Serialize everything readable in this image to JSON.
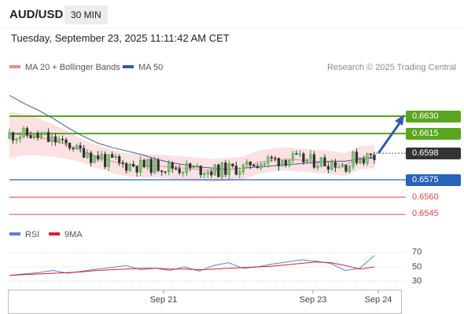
{
  "header": {
    "symbol": "AUD/USD",
    "timeframe": "30 MIN"
  },
  "datetime": "Tuesday, September 23, 2025 11:11:42 AM CET",
  "legend": {
    "ma20": "MA 20 + Bollinger Bands",
    "ma50": "MA 50",
    "credit": "Research © 2025 Trading Central",
    "rsi": "RSI",
    "rsi_ma": "9MA"
  },
  "colors": {
    "ma20": "#f08c8c",
    "ma50": "#3d5a99",
    "bollinger": "#fbe1e1",
    "resistance": "#5aa51f",
    "support": "#2763b8",
    "support_minor": "#e04444",
    "current": "#333333",
    "arrow": "#2d5fa8",
    "rsi_line": "#5b7fd6",
    "rsi_ma": "#d9202b"
  },
  "levels": {
    "resistance": [
      {
        "value": "0.6630",
        "price": 0.663
      },
      {
        "value": "0.6615",
        "price": 0.6615
      }
    ],
    "current": {
      "value": "0.6598",
      "price": 0.6598
    },
    "support": {
      "value": "0.6575",
      "price": 0.6575
    },
    "support_minor": [
      {
        "value": "0.6560",
        "price": 0.656
      },
      {
        "value": "0.6545",
        "price": 0.6545
      }
    ]
  },
  "rsi_levels": [
    {
      "label": "70",
      "value": 70
    },
    {
      "label": "50",
      "value": 50
    },
    {
      "label": "30",
      "value": 30
    }
  ],
  "x_labels": [
    "Sep 21",
    "Sep 23",
    "Sep 24"
  ],
  "chart_data": {
    "type": "line",
    "title": "AUD/USD",
    "interval": "30 MIN",
    "price_series": [
      {
        "name": "MA 20 + Bollinger Bands",
        "values": [
          0.6614,
          0.6614,
          0.6612,
          0.6609,
          0.6605,
          0.66,
          0.6595,
          0.6591,
          0.6588,
          0.6587,
          0.6587,
          0.6586,
          0.6585,
          0.6584,
          0.6583,
          0.6584,
          0.6585,
          0.659,
          0.6592,
          0.6593,
          0.6592,
          0.6591,
          0.659,
          0.6588,
          0.6594,
          0.6595
        ]
      },
      {
        "name": "MA 50",
        "values": [
          0.6648,
          0.6641,
          0.6635,
          0.6628,
          0.662,
          0.6613,
          0.6607,
          0.6603,
          0.66,
          0.6597,
          0.6593,
          0.659,
          0.6588,
          0.6586,
          0.6585,
          0.6584,
          0.6585,
          0.6586,
          0.6587,
          0.6588,
          0.6589,
          0.659,
          0.6591,
          0.6591,
          0.6593,
          0.6594
        ]
      }
    ],
    "rsi_series": [
      {
        "name": "RSI",
        "values": [
          38,
          40,
          42,
          45,
          41,
          44,
          47,
          49,
          52,
          46,
          48,
          45,
          50,
          44,
          52,
          56,
          48,
          50,
          54,
          57,
          60,
          58,
          55,
          45,
          48,
          66
        ]
      },
      {
        "name": "9MA",
        "values": [
          38,
          39,
          40,
          41,
          42,
          43,
          45,
          46,
          47,
          48,
          48,
          47,
          47,
          46,
          47,
          48,
          49,
          50,
          51,
          53,
          55,
          57,
          56,
          52,
          47,
          50
        ]
      }
    ]
  }
}
